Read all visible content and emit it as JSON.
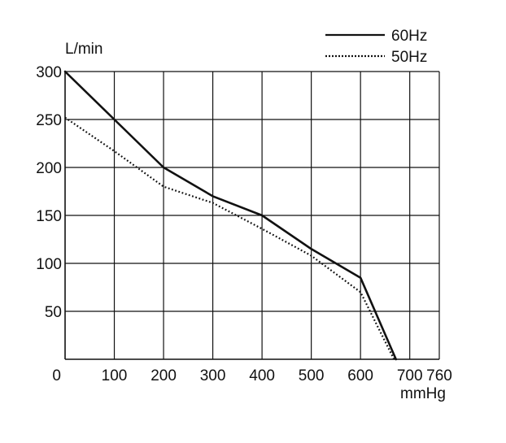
{
  "chart_data": {
    "type": "line",
    "title": "",
    "xlabel": "mmHg",
    "ylabel": "L/min",
    "xlim": [
      0,
      760
    ],
    "ylim": [
      0,
      300
    ],
    "x_ticks": [
      0,
      100,
      200,
      300,
      400,
      500,
      600,
      700,
      760
    ],
    "x_tick_labels": [
      "0",
      "100",
      "200",
      "300",
      "400",
      "500",
      "600",
      "700",
      "760"
    ],
    "y_ticks": [
      50,
      100,
      150,
      200,
      250,
      300
    ],
    "y_tick_labels": [
      "50",
      "100",
      "150",
      "200",
      "250",
      "300"
    ],
    "grid": true,
    "legend_position": "top-right",
    "series": [
      {
        "name": "60Hz",
        "style": "solid",
        "color": "#111111",
        "points": [
          [
            0,
            300
          ],
          [
            100,
            250
          ],
          [
            200,
            200
          ],
          [
            300,
            170
          ],
          [
            400,
            150
          ],
          [
            500,
            115
          ],
          [
            600,
            85
          ],
          [
            672,
            0
          ]
        ]
      },
      {
        "name": "50Hz",
        "style": "dotted",
        "color": "#111111",
        "points": [
          [
            0,
            252
          ],
          [
            100,
            217
          ],
          [
            200,
            180
          ],
          [
            300,
            163
          ],
          [
            400,
            136
          ],
          [
            500,
            108
          ],
          [
            600,
            70
          ],
          [
            668,
            0
          ]
        ]
      }
    ]
  }
}
